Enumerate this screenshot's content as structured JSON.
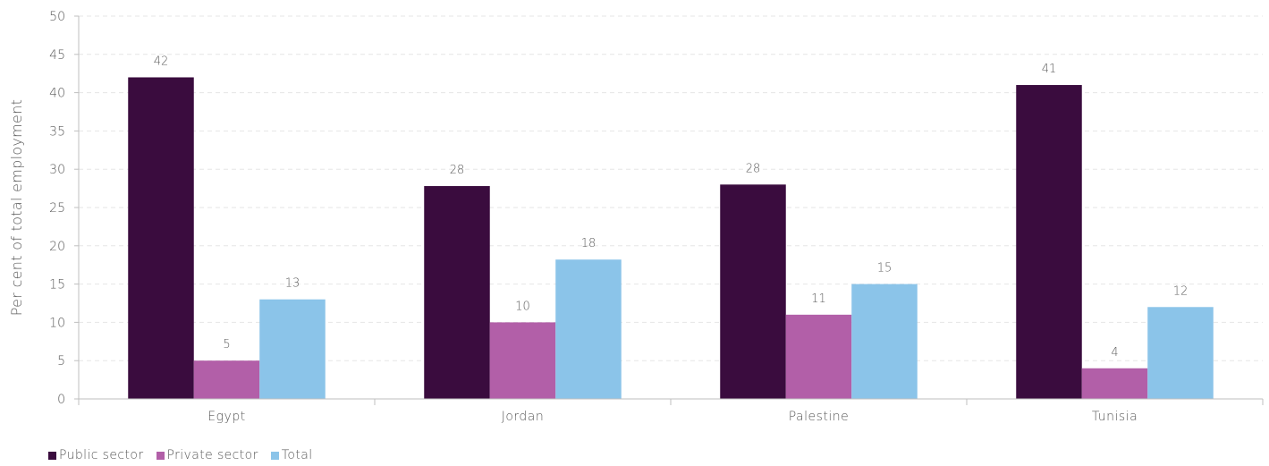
{
  "chart_data": {
    "type": "bar",
    "categories": [
      "Egypt",
      "Jordan",
      "Palestine",
      "Tunisia"
    ],
    "series": [
      {
        "name": "Public sector",
        "values": [
          42,
          27.8,
          28,
          41
        ],
        "labels": [
          "42",
          "28",
          "28",
          "41"
        ],
        "color": "#3a0c3e"
      },
      {
        "name": "Private sector",
        "values": [
          5,
          10,
          11,
          4
        ],
        "labels": [
          "5",
          "10",
          "11",
          "4"
        ],
        "color": "#b25fa8"
      },
      {
        "name": "Total",
        "values": [
          13,
          18.2,
          15,
          12
        ],
        "labels": [
          "13",
          "18",
          "15",
          "12"
        ],
        "color": "#8bc4e9"
      }
    ],
    "ylabel": "Per cent of total employment",
    "xlabel": "",
    "ylim": [
      0,
      50
    ],
    "yticks": [
      0,
      5,
      10,
      15,
      20,
      25,
      30,
      35,
      40,
      45,
      50
    ],
    "grid": true,
    "legend_position": "bottom-left"
  }
}
